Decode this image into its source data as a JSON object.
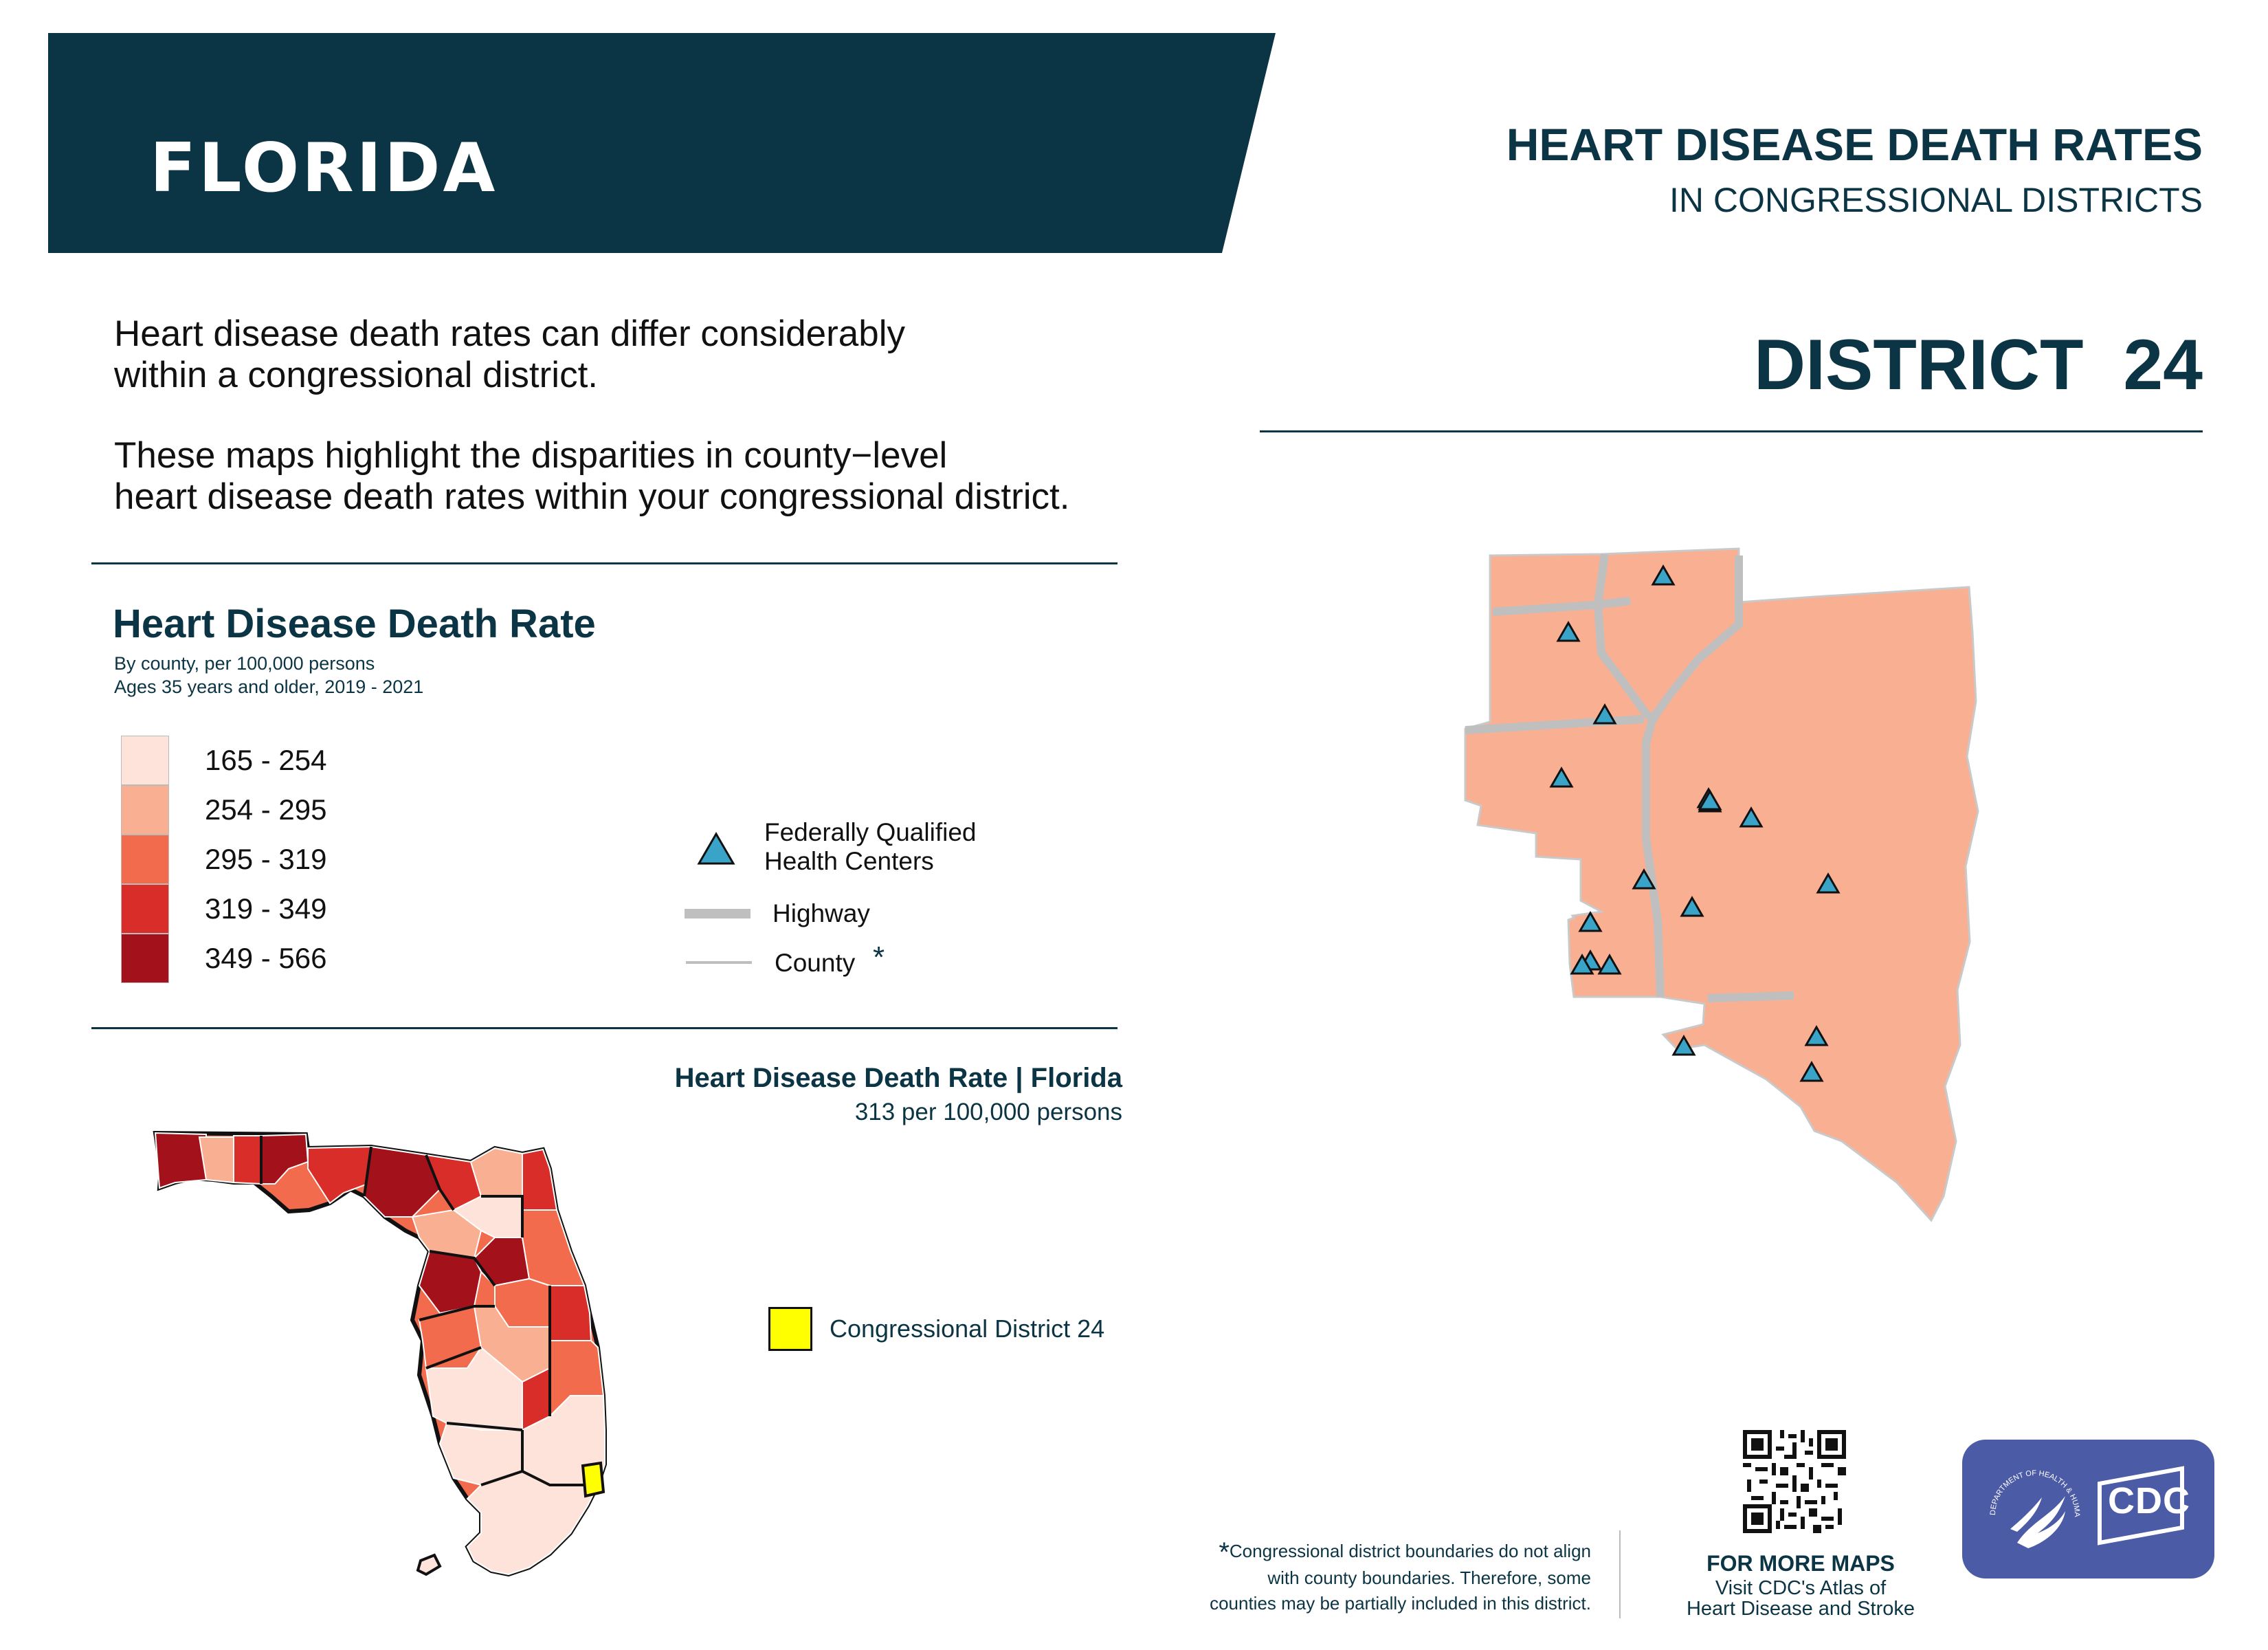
{
  "header": {
    "state_name": "FLORIDA",
    "title": "HEART DISEASE DEATH RATES",
    "subtitle": "IN CONGRESSIONAL DISTRICTS",
    "district_label": "DISTRICT  24"
  },
  "intro": {
    "paragraph1_line1": "Heart disease death rates can differ considerably",
    "paragraph1_line2": "within a congressional district.",
    "paragraph2_line1": "These maps highlight the disparities in county−level",
    "paragraph2_line2": "heart disease death rates within your congressional district."
  },
  "legend": {
    "title": "Heart Disease Death Rate",
    "subtitle_line1": "By county, per 100,000 persons",
    "subtitle_line2": "Ages 35 years and older, 2019 - 2021",
    "classes": [
      {
        "label": "165 - 254",
        "color": "#fde3da"
      },
      {
        "label": "254 - 295",
        "color": "#f9af92"
      },
      {
        "label": "295 - 319",
        "color": "#f26b4d"
      },
      {
        "label": "319 - 349",
        "color": "#d92d29"
      },
      {
        "label": "349 - 566",
        "color": "#a3121a"
      }
    ],
    "symbols": {
      "fqhc_line1": "Federally Qualified",
      "fqhc_line2": "Health Centers",
      "highway": "Highway",
      "county": "County",
      "county_marker": "*"
    }
  },
  "state_map": {
    "title": "Heart Disease Death Rate | Florida",
    "rate": "313 per 100,000 persons",
    "district_legend": "Congressional District 24",
    "district_color": "#ffff00"
  },
  "district_map": {
    "fill_color": "#f9af92",
    "health_center_count": 18
  },
  "footer": {
    "note_marker": "*",
    "note_line1": "Congressional district boundaries do not align",
    "note_line2": "with county boundaries. Therefore, some",
    "note_line3": "counties may be partially included in this district.",
    "more_maps_title": "FOR MORE MAPS",
    "more_maps_line1": "Visit CDC's Atlas of",
    "more_maps_line2": "Heart Disease and Stroke",
    "qr_code_icon": "qr-code-icon",
    "cdc_logo": "CDC",
    "hhs_seal_text": "DEPARTMENT OF HEALTH & HUMAN SERVICES · USA"
  },
  "colors": {
    "brand_dark": "#0b3544",
    "health_center": "#3aa3c8"
  }
}
